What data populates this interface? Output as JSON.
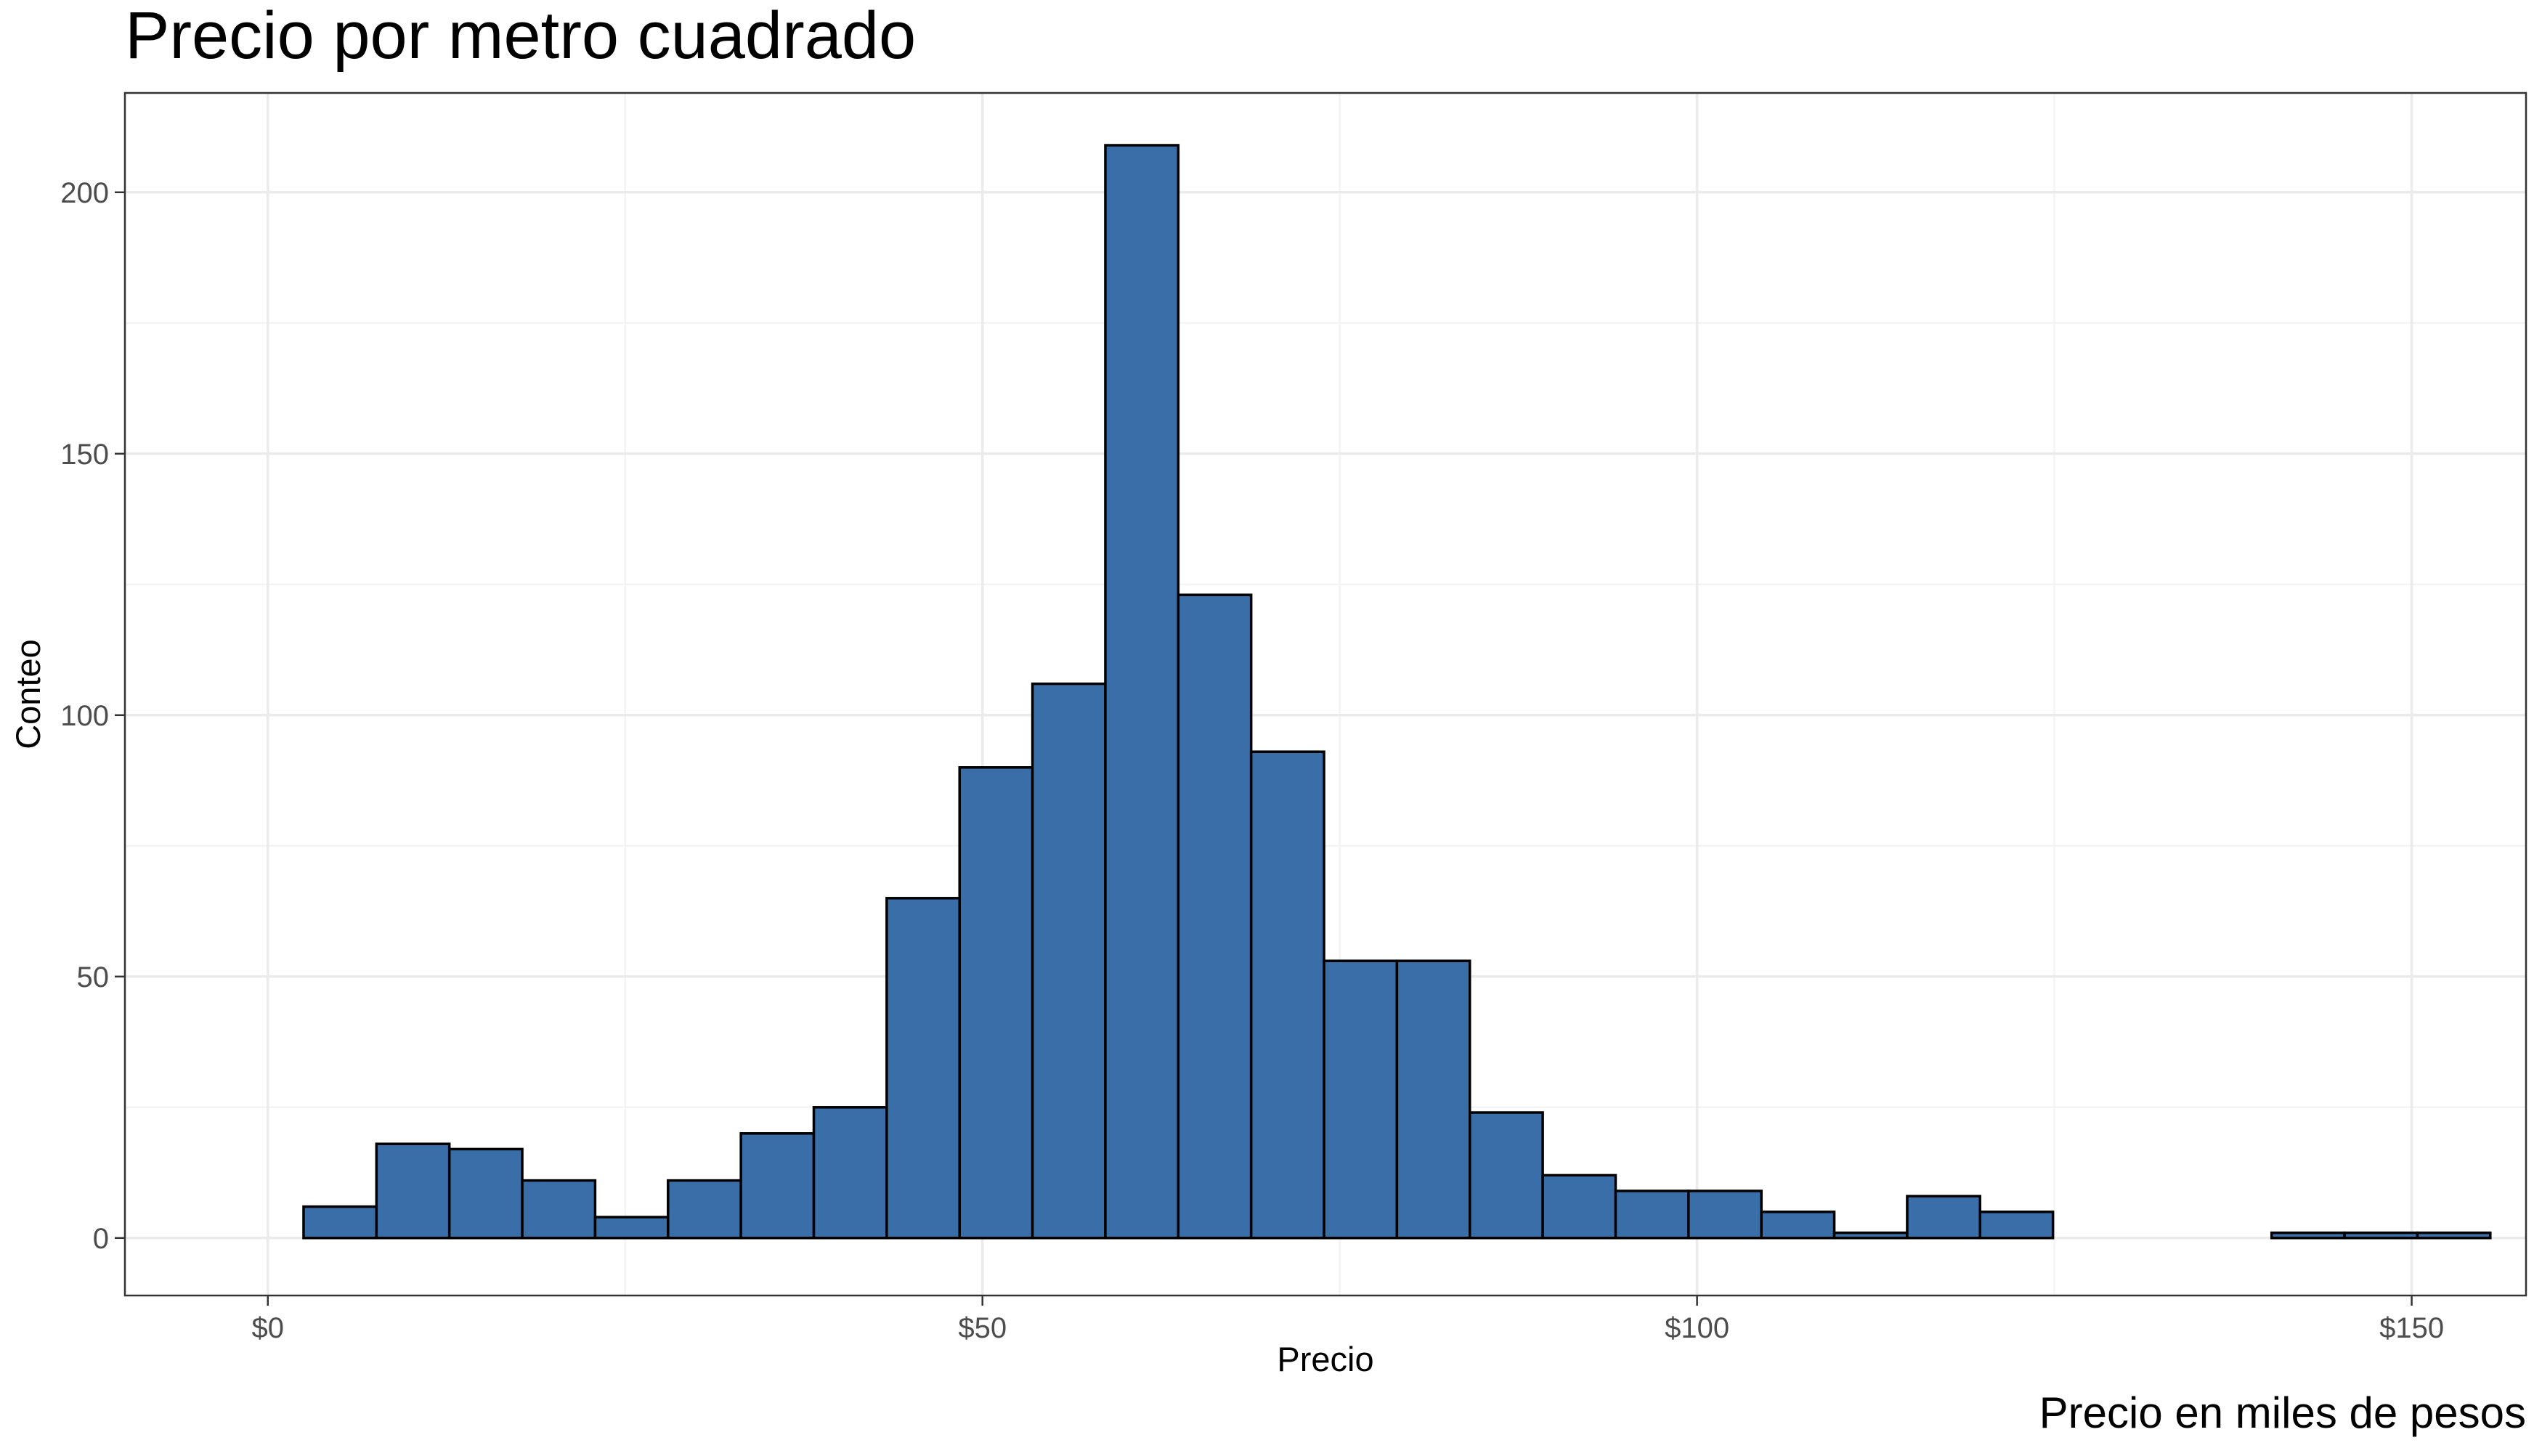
{
  "chart_data": {
    "type": "bar",
    "subtype": "histogram",
    "title": "Precio por metro cuadrado",
    "xlabel": "Precio",
    "ylabel": "Conteo",
    "caption": "Precio en miles de pesos",
    "xlim": [
      -10,
      158
    ],
    "ylim": [
      -11,
      219
    ],
    "x_ticks": [
      0,
      50,
      100,
      150
    ],
    "x_tick_labels": [
      "$0",
      "$50",
      "$100",
      "$150"
    ],
    "y_ticks": [
      0,
      50,
      100,
      150,
      200
    ],
    "y_tick_labels": [
      "0",
      "50",
      "100",
      "150",
      "200"
    ],
    "grid": true,
    "bin_width": 5.1,
    "bins": [
      {
        "x0": 2.5,
        "x1": 7.6,
        "count": 6
      },
      {
        "x0": 7.6,
        "x1": 12.7,
        "count": 18
      },
      {
        "x0": 12.7,
        "x1": 17.8,
        "count": 17
      },
      {
        "x0": 17.8,
        "x1": 22.9,
        "count": 11
      },
      {
        "x0": 22.9,
        "x1": 28.0,
        "count": 4
      },
      {
        "x0": 28.0,
        "x1": 33.1,
        "count": 11
      },
      {
        "x0": 33.1,
        "x1": 38.2,
        "count": 20
      },
      {
        "x0": 38.2,
        "x1": 43.3,
        "count": 25
      },
      {
        "x0": 43.3,
        "x1": 48.4,
        "count": 65
      },
      {
        "x0": 48.4,
        "x1": 53.5,
        "count": 90
      },
      {
        "x0": 53.5,
        "x1": 58.6,
        "count": 106
      },
      {
        "x0": 58.6,
        "x1": 63.7,
        "count": 209
      },
      {
        "x0": 63.7,
        "x1": 68.8,
        "count": 123
      },
      {
        "x0": 68.8,
        "x1": 73.9,
        "count": 93
      },
      {
        "x0": 73.9,
        "x1": 79.0,
        "count": 53
      },
      {
        "x0": 79.0,
        "x1": 84.1,
        "count": 53
      },
      {
        "x0": 84.1,
        "x1": 89.2,
        "count": 24
      },
      {
        "x0": 89.2,
        "x1": 94.3,
        "count": 12
      },
      {
        "x0": 94.3,
        "x1": 99.4,
        "count": 9
      },
      {
        "x0": 99.4,
        "x1": 104.5,
        "count": 9
      },
      {
        "x0": 104.5,
        "x1": 109.6,
        "count": 5
      },
      {
        "x0": 109.6,
        "x1": 114.7,
        "count": 1
      },
      {
        "x0": 114.7,
        "x1": 119.8,
        "count": 8
      },
      {
        "x0": 119.8,
        "x1": 124.9,
        "count": 5
      },
      {
        "x0": 124.9,
        "x1": 130.0,
        "count": 0
      },
      {
        "x0": 130.0,
        "x1": 135.1,
        "count": 0
      },
      {
        "x0": 135.1,
        "x1": 140.2,
        "count": 0
      },
      {
        "x0": 140.2,
        "x1": 145.3,
        "count": 1
      },
      {
        "x0": 145.3,
        "x1": 150.4,
        "count": 1
      },
      {
        "x0": 150.4,
        "x1": 155.5,
        "count": 1
      }
    ],
    "colors": {
      "bar_fill": "#3A6EA8",
      "bar_stroke": "#000000",
      "grid_major": "#EBEBEB",
      "grid_minor": "#F4F4F4",
      "panel_border": "#333333",
      "tick_text": "#4D4D4D",
      "label_text": "#000000"
    }
  }
}
